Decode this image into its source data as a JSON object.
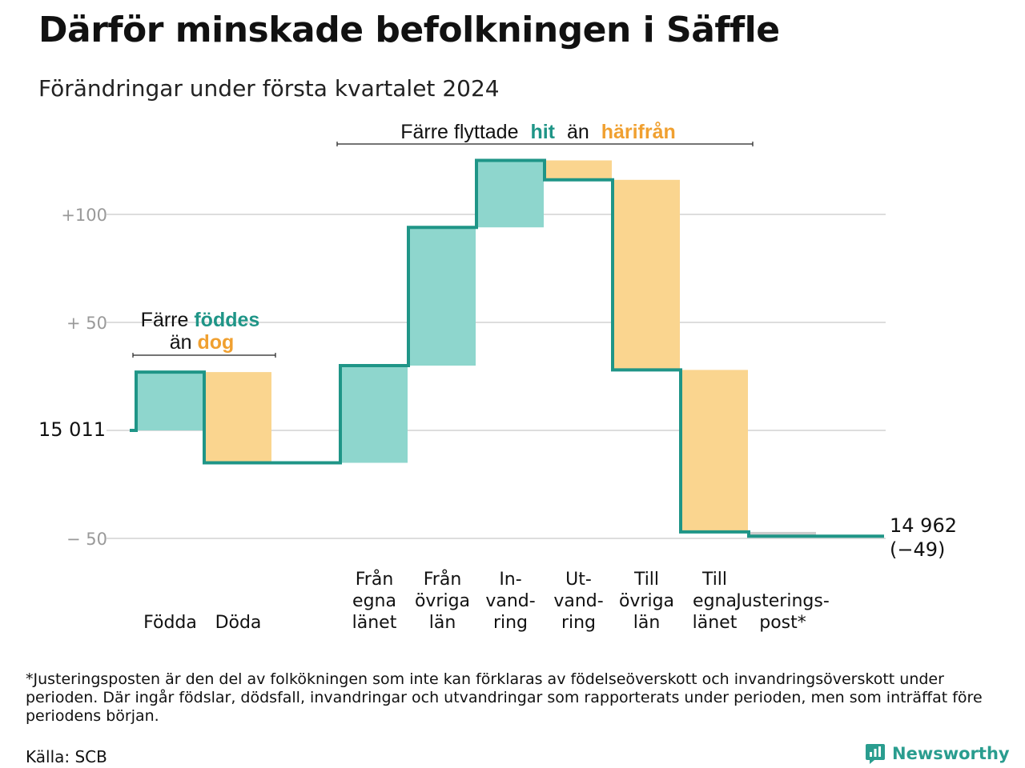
{
  "header": {
    "title": "Därför minskade befolkningen i Säffle",
    "subtitle": "Förändringar under första kvartalet 2024"
  },
  "annotations": {
    "births": {
      "line1_prefix": "Färre",
      "line1_highlight": "föddes",
      "line2_prefix": "än",
      "line2_highlight": "dog"
    },
    "moves": {
      "prefix": "Färre flyttade",
      "highlight_in": "hit",
      "middle": "än",
      "highlight_out": "härifrån"
    }
  },
  "end_label": {
    "value": "14 962",
    "change": "(−49)"
  },
  "footnote": "*Justeringsposten är den del av folkökningen som inte kan förklaras av födelseöverskott och invandringsöverskott under perioden. Där ingår födslar, dödsfall, invandringar och utvandringar som rapporterats under perioden, men som inträffat före periodens början.",
  "source": "Källa: SCB",
  "brand": {
    "name": "Newsworthy",
    "icon": "newsworthy-logo-icon"
  },
  "colors": {
    "increase": "#8ed6cd",
    "decrease": "#fad58f",
    "adjustment": "#cccccc",
    "line": "#1f9587",
    "highlight_teal": "#1f9587",
    "highlight_orange": "#f0a030",
    "grid": "#dddddd",
    "tick": "#999999"
  },
  "chart_data": {
    "type": "waterfall",
    "title": "Därför minskade befolkningen i Säffle",
    "subtitle": "Förändringar under första kvartalet 2024",
    "start_value": 15011,
    "start_label": "15  011",
    "end_value": 14962,
    "net_change": -49,
    "y_ticks": [
      {
        "value": 100,
        "label": "+100"
      },
      {
        "value": 50,
        "label": "+  50"
      },
      {
        "value": 0,
        "label": ""
      },
      {
        "value": -50,
        "label": "−  50"
      }
    ],
    "ylim": [
      -55,
      130
    ],
    "grid": true,
    "steps": [
      {
        "label": "Födda",
        "value": 27,
        "kind": "increase"
      },
      {
        "label": "Döda",
        "value": -42,
        "kind": "decrease"
      },
      {
        "label": "",
        "value": 0,
        "kind": "gap"
      },
      {
        "label": "Från\negna\nlänet",
        "value": 45,
        "kind": "increase"
      },
      {
        "label": "Från\növriga\nlän",
        "value": 64,
        "kind": "increase"
      },
      {
        "label": "In-\nvand-\nring",
        "value": 31,
        "kind": "increase"
      },
      {
        "label": "Ut-\nvand-\nring",
        "value": -9,
        "kind": "decrease"
      },
      {
        "label": "Till\növriga\nlän",
        "value": -88,
        "kind": "decrease"
      },
      {
        "label": "Till\negna\nlänet",
        "value": -75,
        "kind": "decrease"
      },
      {
        "label": "Justerings-\npost*",
        "value": -2,
        "kind": "adjustment"
      }
    ]
  }
}
